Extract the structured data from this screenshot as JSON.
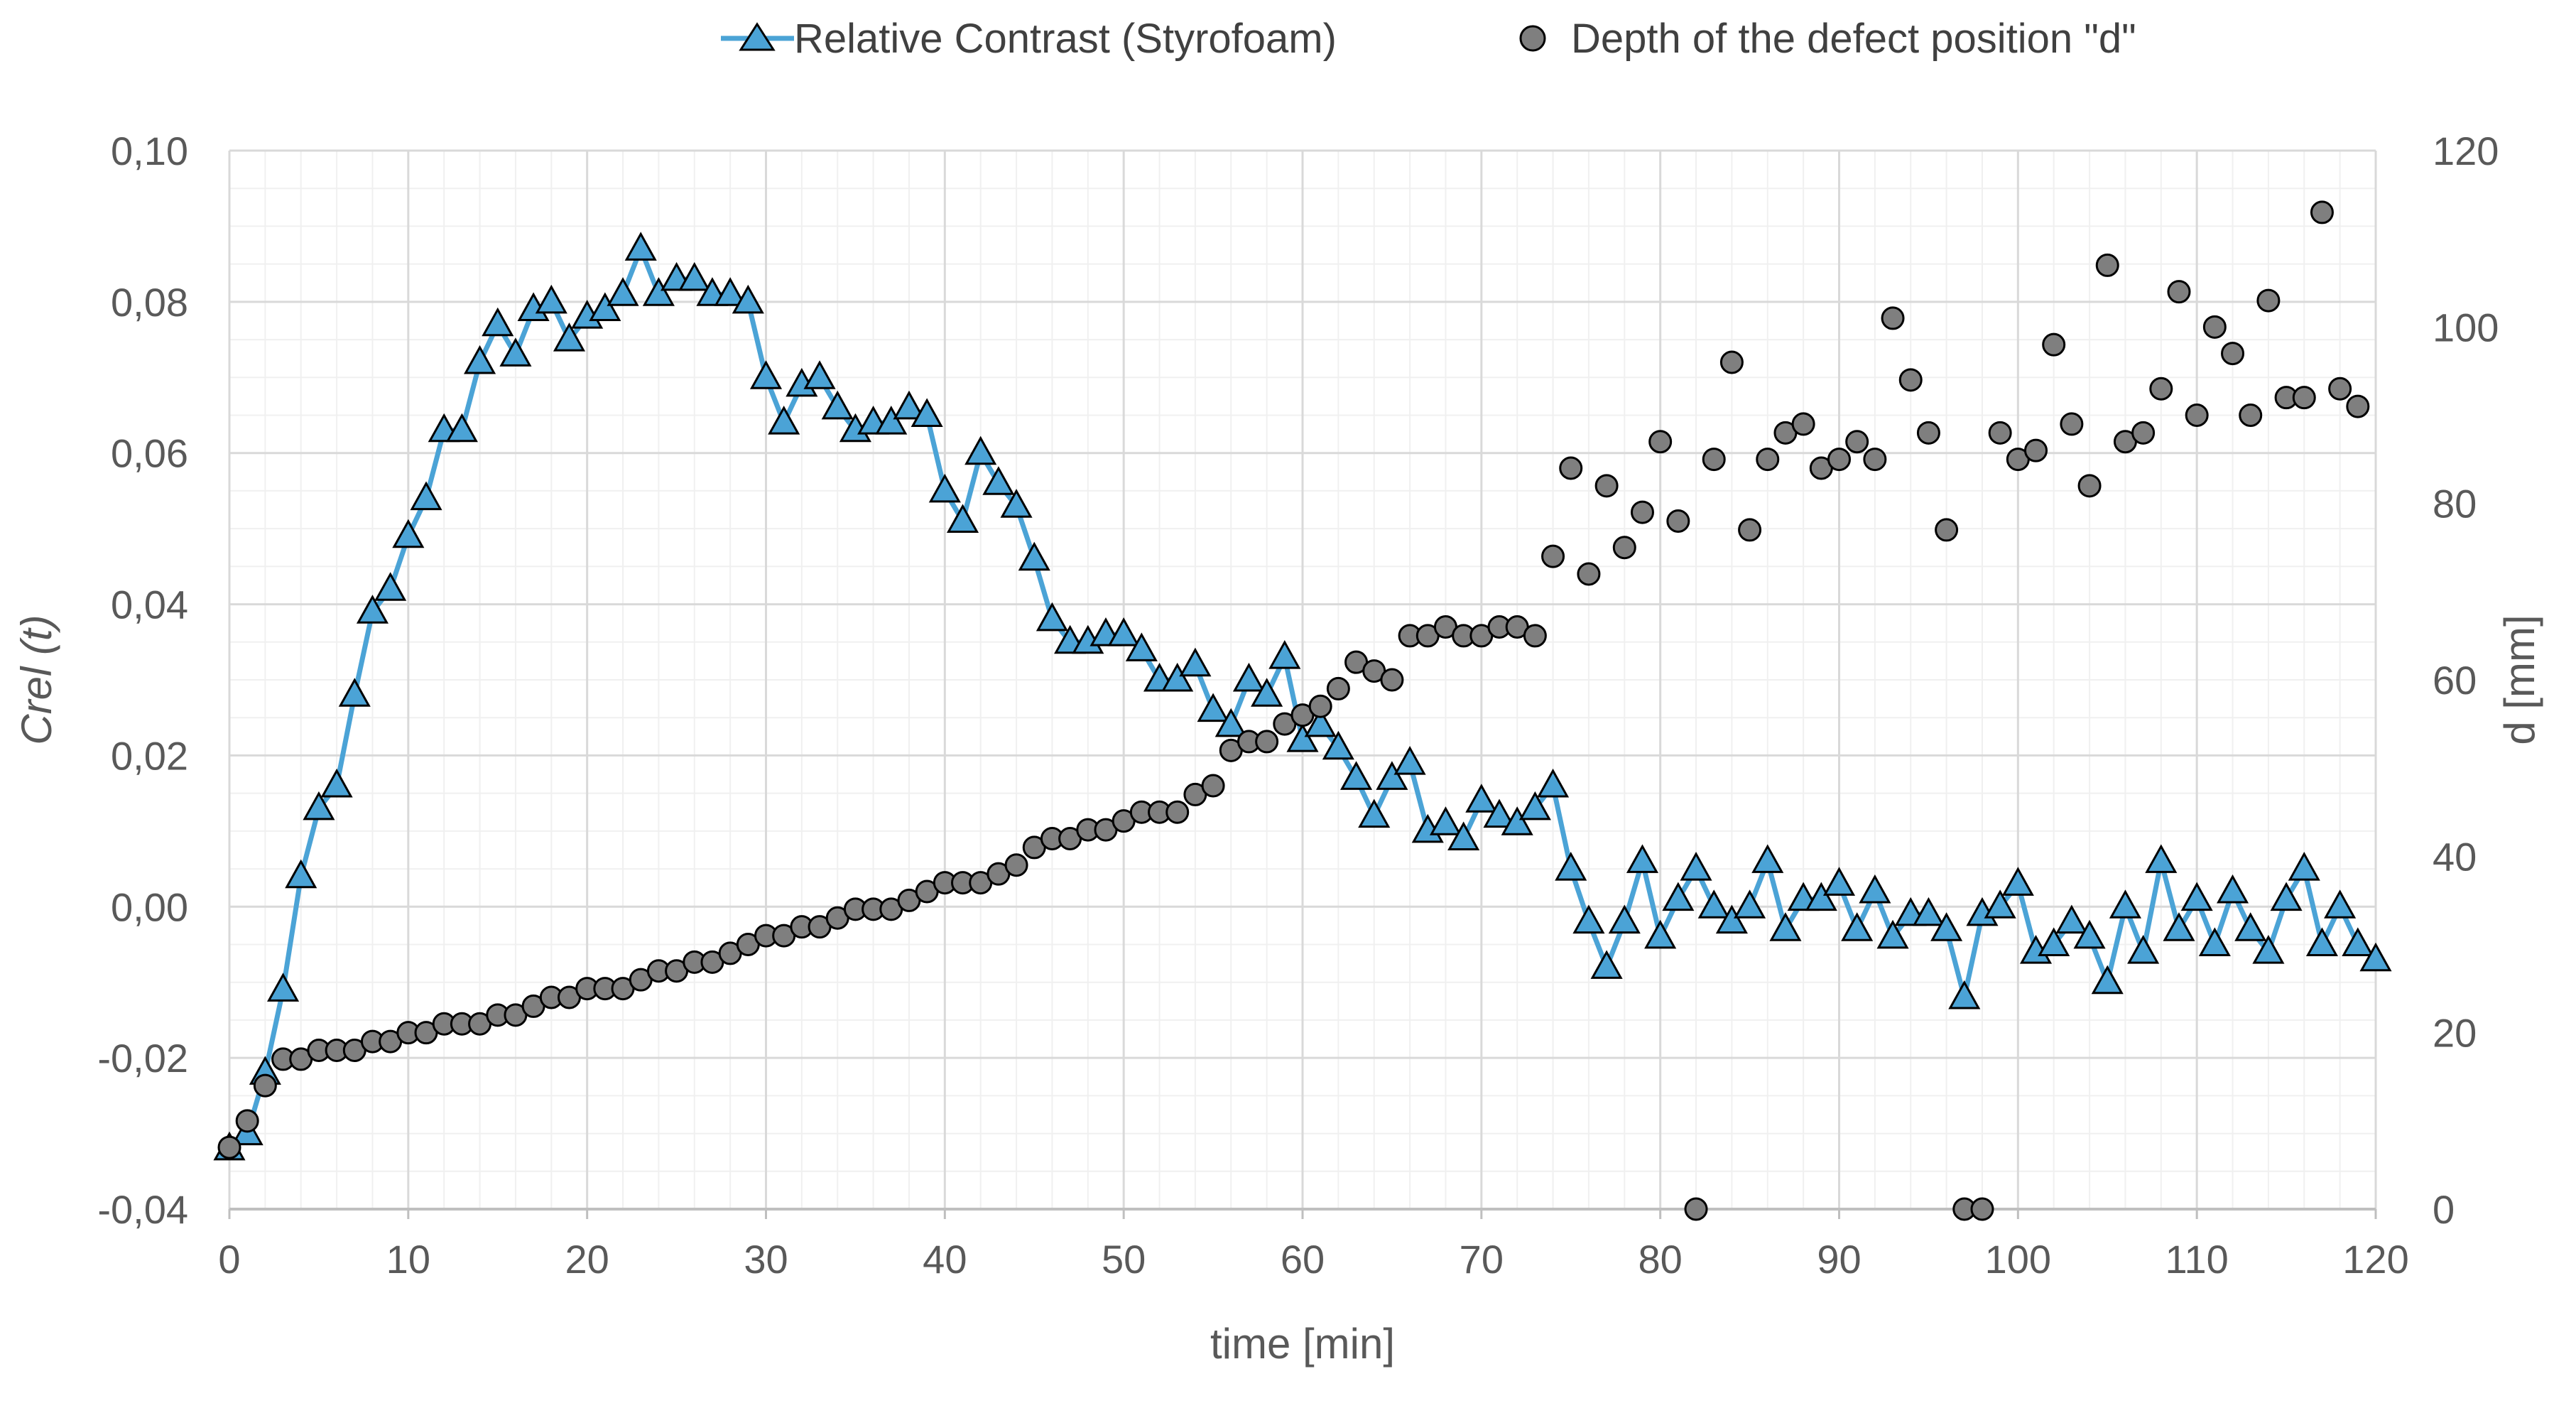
{
  "chart_data": {
    "type": "line+scatter",
    "title": "",
    "xlabel": "time [min]",
    "ylabel": "Crel (t)",
    "ylabel_right": "d [mm]",
    "xlim": [
      0,
      120
    ],
    "ylim": [
      -0.04,
      0.1
    ],
    "ylim_right": [
      0,
      120
    ],
    "x_ticks": [
      "0",
      "10",
      "20",
      "30",
      "40",
      "50",
      "60",
      "70",
      "80",
      "90",
      "100",
      "110",
      "120"
    ],
    "y_ticks": [
      "-0,04",
      "-0,02",
      "0,00",
      "0,02",
      "0,04",
      "0,06",
      "0,08",
      "0,10"
    ],
    "y_right_ticks": [
      "0",
      "20",
      "40",
      "60",
      "80",
      "100",
      "120"
    ],
    "grid": true,
    "legend_position": "top-center",
    "series": [
      {
        "name": "Relative Contrast (Styrofoam)",
        "axis": "left",
        "color": "#4ba3d6",
        "marker": "triangle",
        "points": [
          [
            0,
            -0.032
          ],
          [
            1,
            -0.03
          ],
          [
            2,
            -0.022
          ],
          [
            3,
            -0.011
          ],
          [
            4,
            0.004
          ],
          [
            5,
            0.013
          ],
          [
            6,
            0.016
          ],
          [
            7,
            0.028
          ],
          [
            8,
            0.039
          ],
          [
            9,
            0.042
          ],
          [
            10,
            0.049
          ],
          [
            11,
            0.054
          ],
          [
            12,
            0.063
          ],
          [
            13,
            0.063
          ],
          [
            14,
            0.072
          ],
          [
            15,
            0.077
          ],
          [
            16,
            0.073
          ],
          [
            17,
            0.079
          ],
          [
            18,
            0.08
          ],
          [
            19,
            0.075
          ],
          [
            20,
            0.078
          ],
          [
            21,
            0.079
          ],
          [
            22,
            0.081
          ],
          [
            23,
            0.087
          ],
          [
            24,
            0.081
          ],
          [
            25,
            0.083
          ],
          [
            26,
            0.083
          ],
          [
            27,
            0.081
          ],
          [
            28,
            0.081
          ],
          [
            29,
            0.08
          ],
          [
            30,
            0.07
          ],
          [
            31,
            0.064
          ],
          [
            32,
            0.069
          ],
          [
            33,
            0.07
          ],
          [
            34,
            0.066
          ],
          [
            35,
            0.063
          ],
          [
            36,
            0.064
          ],
          [
            37,
            0.064
          ],
          [
            38,
            0.066
          ],
          [
            39,
            0.065
          ],
          [
            40,
            0.055
          ],
          [
            41,
            0.051
          ],
          [
            42,
            0.06
          ],
          [
            43,
            0.056
          ],
          [
            44,
            0.053
          ],
          [
            45,
            0.046
          ],
          [
            46,
            0.038
          ],
          [
            47,
            0.035
          ],
          [
            48,
            0.035
          ],
          [
            49,
            0.036
          ],
          [
            50,
            0.036
          ],
          [
            51,
            0.034
          ],
          [
            52,
            0.03
          ],
          [
            53,
            0.03
          ],
          [
            54,
            0.032
          ],
          [
            55,
            0.026
          ],
          [
            56,
            0.024
          ],
          [
            57,
            0.03
          ],
          [
            58,
            0.028
          ],
          [
            59,
            0.033
          ],
          [
            60,
            0.022
          ],
          [
            61,
            0.024
          ],
          [
            62,
            0.021
          ],
          [
            63,
            0.017
          ],
          [
            64,
            0.012
          ],
          [
            65,
            0.017
          ],
          [
            66,
            0.019
          ],
          [
            67,
            0.01
          ],
          [
            68,
            0.011
          ],
          [
            69,
            0.009
          ],
          [
            70,
            0.014
          ],
          [
            71,
            0.012
          ],
          [
            72,
            0.011
          ],
          [
            73,
            0.013
          ],
          [
            74,
            0.016
          ],
          [
            75,
            0.005
          ],
          [
            76,
            -0.002
          ],
          [
            77,
            -0.008
          ],
          [
            78,
            -0.002
          ],
          [
            79,
            0.006
          ],
          [
            80,
            -0.004
          ],
          [
            81,
            0.001
          ],
          [
            82,
            0.005
          ],
          [
            83,
            0.0
          ],
          [
            84,
            -0.002
          ],
          [
            85,
            0.0
          ],
          [
            86,
            0.006
          ],
          [
            87,
            -0.003
          ],
          [
            88,
            0.001
          ],
          [
            89,
            0.001
          ],
          [
            90,
            0.003
          ],
          [
            91,
            -0.003
          ],
          [
            92,
            0.002
          ],
          [
            93,
            -0.004
          ],
          [
            94,
            -0.001
          ],
          [
            95,
            -0.001
          ],
          [
            96,
            -0.003
          ],
          [
            97,
            -0.012
          ],
          [
            98,
            -0.001
          ],
          [
            99,
            0.0
          ],
          [
            100,
            0.003
          ],
          [
            101,
            -0.006
          ],
          [
            102,
            -0.005
          ],
          [
            103,
            -0.002
          ],
          [
            104,
            -0.004
          ],
          [
            105,
            -0.01
          ],
          [
            106,
            0.0
          ],
          [
            107,
            -0.006
          ],
          [
            108,
            0.006
          ],
          [
            109,
            -0.003
          ],
          [
            110,
            0.001
          ],
          [
            111,
            -0.005
          ],
          [
            112,
            0.002
          ],
          [
            113,
            -0.003
          ],
          [
            114,
            -0.006
          ],
          [
            115,
            0.001
          ],
          [
            116,
            0.005
          ],
          [
            117,
            -0.005
          ],
          [
            118,
            0.0
          ],
          [
            119,
            -0.005
          ],
          [
            120,
            -0.007
          ]
        ]
      },
      {
        "name": "Depth of the defect position \"d\"",
        "axis": "right",
        "color": "#7f7f7f",
        "marker": "circle",
        "points": [
          [
            0,
            7
          ],
          [
            1,
            10
          ],
          [
            2,
            14
          ],
          [
            3,
            17
          ],
          [
            4,
            17
          ],
          [
            5,
            18
          ],
          [
            6,
            18
          ],
          [
            7,
            18
          ],
          [
            8,
            19
          ],
          [
            9,
            19
          ],
          [
            10,
            20
          ],
          [
            11,
            20
          ],
          [
            12,
            21
          ],
          [
            13,
            21
          ],
          [
            14,
            21
          ],
          [
            15,
            22
          ],
          [
            16,
            22
          ],
          [
            17,
            23
          ],
          [
            18,
            24
          ],
          [
            19,
            24
          ],
          [
            20,
            25
          ],
          [
            21,
            25
          ],
          [
            22,
            25
          ],
          [
            23,
            26
          ],
          [
            24,
            27
          ],
          [
            25,
            27
          ],
          [
            26,
            28
          ],
          [
            27,
            28
          ],
          [
            28,
            29
          ],
          [
            29,
            30
          ],
          [
            30,
            31
          ],
          [
            31,
            31
          ],
          [
            32,
            32
          ],
          [
            33,
            32
          ],
          [
            34,
            33
          ],
          [
            35,
            34
          ],
          [
            36,
            34
          ],
          [
            37,
            34
          ],
          [
            38,
            35
          ],
          [
            39,
            36
          ],
          [
            40,
            37
          ],
          [
            41,
            37
          ],
          [
            42,
            37
          ],
          [
            43,
            38
          ],
          [
            44,
            39
          ],
          [
            45,
            41
          ],
          [
            46,
            42
          ],
          [
            47,
            42
          ],
          [
            48,
            43
          ],
          [
            49,
            43
          ],
          [
            50,
            44
          ],
          [
            51,
            45
          ],
          [
            52,
            45
          ],
          [
            53,
            45
          ],
          [
            54,
            47
          ],
          [
            55,
            48
          ],
          [
            56,
            52
          ],
          [
            57,
            53
          ],
          [
            58,
            53
          ],
          [
            59,
            55
          ],
          [
            60,
            56
          ],
          [
            61,
            57
          ],
          [
            62,
            59
          ],
          [
            63,
            62
          ],
          [
            64,
            61
          ],
          [
            65,
            60
          ],
          [
            66,
            65
          ],
          [
            67,
            65
          ],
          [
            68,
            66
          ],
          [
            69,
            65
          ],
          [
            70,
            65
          ],
          [
            71,
            66
          ],
          [
            72,
            66
          ],
          [
            73,
            65
          ],
          [
            74,
            74
          ],
          [
            75,
            84
          ],
          [
            76,
            72
          ],
          [
            77,
            82
          ],
          [
            78,
            75
          ],
          [
            79,
            79
          ],
          [
            80,
            87
          ],
          [
            81,
            78
          ],
          [
            82,
            0
          ],
          [
            83,
            85
          ],
          [
            84,
            96
          ],
          [
            85,
            77
          ],
          [
            86,
            85
          ],
          [
            87,
            88
          ],
          [
            88,
            89
          ],
          [
            89,
            84
          ],
          [
            90,
            85
          ],
          [
            91,
            87
          ],
          [
            92,
            85
          ],
          [
            93,
            101
          ],
          [
            94,
            94
          ],
          [
            95,
            88
          ],
          [
            96,
            77
          ],
          [
            97,
            0
          ],
          [
            98,
            0
          ],
          [
            99,
            88
          ],
          [
            100,
            85
          ],
          [
            101,
            86
          ],
          [
            102,
            98
          ],
          [
            103,
            89
          ],
          [
            104,
            82
          ],
          [
            105,
            107
          ],
          [
            106,
            87
          ],
          [
            107,
            88
          ],
          [
            108,
            93
          ],
          [
            109,
            104
          ],
          [
            110,
            90
          ],
          [
            111,
            100
          ],
          [
            112,
            97
          ],
          [
            113,
            90
          ],
          [
            114,
            103
          ],
          [
            115,
            92
          ],
          [
            116,
            92
          ],
          [
            117,
            113
          ],
          [
            118,
            93
          ],
          [
            119,
            91
          ]
        ]
      }
    ]
  }
}
